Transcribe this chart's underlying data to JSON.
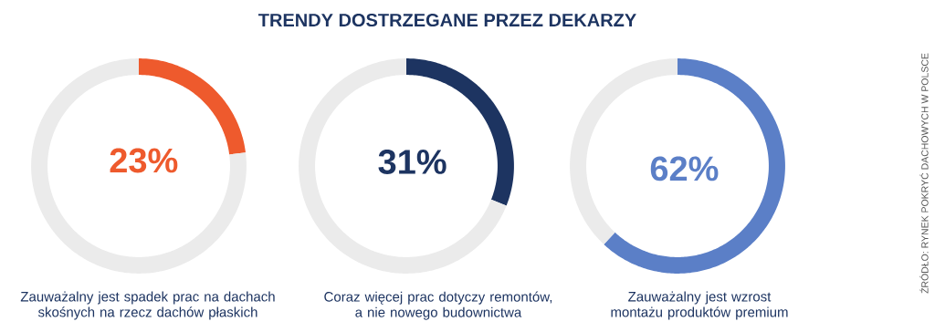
{
  "chart_data": [
    {
      "type": "donut",
      "xlabel": "Zauważalny jest spadek prac na dachach skośnych na rzecz dachów płaskich",
      "categories": [
        null,
        null
      ],
      "values": [
        23,
        77
      ],
      "colors": [
        "#ee5a2d",
        "#ebebeb"
      ],
      "value_labels": [
        "23%",
        null
      ]
    },
    {
      "type": "donut",
      "title": "TRENDY DOSTRZEGANE PRZEZ DEKARZY",
      "xlabel": "Coraz więcej prac dotyczy remontów, a nie nowego budownictwa",
      "categories": [
        null,
        null
      ],
      "values": [
        31,
        69
      ],
      "colors": [
        "#1d3461",
        "#ebebeb"
      ],
      "value_labels": [
        "31%",
        null
      ]
    },
    {
      "type": "donut",
      "xlabel": "Zauważalny jest wzrost montażu produktów premium",
      "categories": [
        null,
        null
      ],
      "values": [
        62,
        38
      ],
      "colors": [
        "#5b7fc7",
        "#ebebeb"
      ],
      "value_labels": [
        "62%",
        null
      ],
      "annotations": [
        "ŹRÓDŁO: RYNEK POKRYĆ DACHOWYCH W POLSCE"
      ]
    }
  ]
}
